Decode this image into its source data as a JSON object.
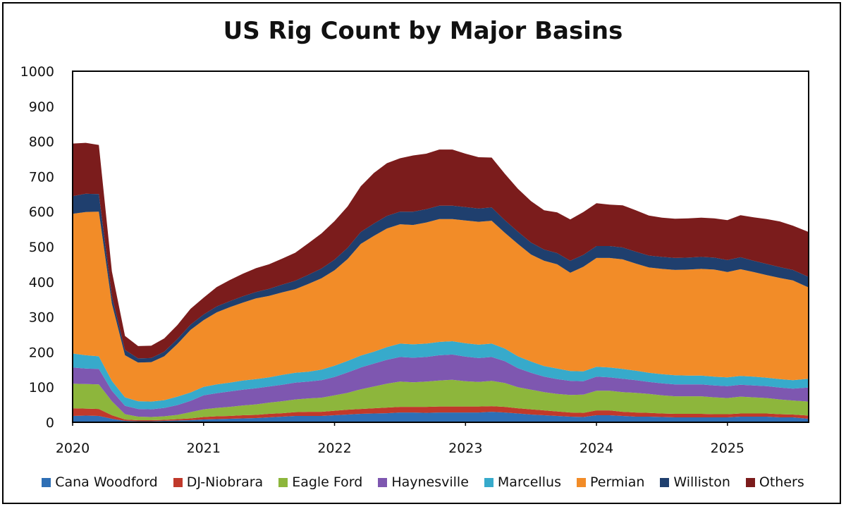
{
  "chart_data": {
    "type": "area",
    "stacked": true,
    "title": "US Rig Count by Major Basins",
    "xlabel": "",
    "ylabel": "",
    "ylim": [
      0,
      1000
    ],
    "yticks": [
      "0",
      "100",
      "200",
      "300",
      "400",
      "500",
      "600",
      "700",
      "800",
      "900",
      "1000"
    ],
    "xticks": [
      "2020",
      "2021",
      "2022",
      "2023",
      "2024",
      "2025"
    ],
    "xlim": [
      2020.0,
      2025.62
    ],
    "legend_position": "bottom",
    "grid": false,
    "x": [
      2020.0,
      2020.1,
      2020.2,
      2020.3,
      2020.4,
      2020.5,
      2020.6,
      2020.7,
      2020.8,
      2020.9,
      2021.0,
      2021.1,
      2021.2,
      2021.3,
      2021.4,
      2021.5,
      2021.6,
      2021.7,
      2021.8,
      2021.9,
      2022.0,
      2022.1,
      2022.2,
      2022.3,
      2022.4,
      2022.5,
      2022.6,
      2022.7,
      2022.8,
      2022.9,
      2023.0,
      2023.1,
      2023.2,
      2023.3,
      2023.4,
      2023.5,
      2023.6,
      2023.7,
      2023.8,
      2023.9,
      2024.0,
      2024.1,
      2024.2,
      2024.3,
      2024.4,
      2024.5,
      2024.6,
      2024.7,
      2024.8,
      2024.9,
      2025.0,
      2025.1,
      2025.2,
      2025.3,
      2025.4,
      2025.5,
      2025.62
    ],
    "series": [
      {
        "name": "Cana Woodford",
        "color": "#2e6fb5",
        "values": [
          18,
          19,
          18,
          10,
          4,
          3,
          3,
          4,
          5,
          6,
          8,
          9,
          10,
          11,
          12,
          14,
          16,
          18,
          18,
          18,
          20,
          22,
          24,
          25,
          26,
          28,
          28,
          27,
          28,
          28,
          28,
          28,
          30,
          28,
          25,
          22,
          20,
          18,
          16,
          15,
          20,
          20,
          18,
          16,
          16,
          15,
          14,
          14,
          14,
          14,
          14,
          16,
          16,
          16,
          14,
          14,
          10
        ]
      },
      {
        "name": "DJ-Niobrara",
        "color": "#c0392b",
        "values": [
          22,
          20,
          20,
          10,
          4,
          3,
          3,
          3,
          4,
          5,
          7,
          8,
          8,
          9,
          9,
          10,
          10,
          11,
          12,
          12,
          13,
          14,
          14,
          15,
          16,
          16,
          16,
          17,
          17,
          17,
          17,
          17,
          16,
          16,
          15,
          15,
          14,
          13,
          12,
          12,
          14,
          14,
          12,
          12,
          11,
          10,
          10,
          10,
          10,
          9,
          9,
          9,
          9,
          9,
          9,
          8,
          9
        ]
      },
      {
        "name": "Eagle Ford",
        "color": "#8db63c",
        "values": [
          70,
          70,
          70,
          40,
          15,
          10,
          9,
          10,
          12,
          18,
          22,
          24,
          26,
          28,
          30,
          32,
          34,
          36,
          38,
          40,
          44,
          48,
          56,
          62,
          68,
          72,
          70,
          72,
          74,
          76,
          72,
          70,
          72,
          68,
          60,
          56,
          52,
          50,
          50,
          52,
          56,
          56,
          56,
          56,
          54,
          52,
          50,
          50,
          50,
          48,
          46,
          48,
          46,
          44,
          42,
          40,
          40
        ]
      },
      {
        "name": "Haynesville",
        "color": "#7e57b0",
        "values": [
          46,
          44,
          44,
          30,
          24,
          22,
          22,
          24,
          28,
          32,
          40,
          42,
          44,
          45,
          46,
          46,
          47,
          48,
          48,
          50,
          52,
          58,
          62,
          65,
          68,
          70,
          70,
          70,
          72,
          72,
          70,
          68,
          68,
          62,
          54,
          48,
          44,
          42,
          40,
          38,
          40,
          38,
          38,
          36,
          34,
          34,
          34,
          34,
          34,
          34,
          34,
          34,
          34,
          34,
          34,
          34,
          40
        ]
      },
      {
        "name": "Marcellus",
        "color": "#37aacb",
        "values": [
          40,
          38,
          36,
          28,
          24,
          22,
          22,
          22,
          24,
          24,
          24,
          25,
          25,
          26,
          26,
          26,
          28,
          28,
          28,
          30,
          32,
          33,
          34,
          34,
          36,
          38,
          38,
          38,
          38,
          38,
          38,
          38,
          38,
          36,
          34,
          32,
          30,
          30,
          28,
          28,
          28,
          28,
          28,
          27,
          26,
          26,
          26,
          25,
          25,
          25,
          25,
          25,
          25,
          24,
          24,
          24,
          25
        ]
      },
      {
        "name": "Permian",
        "color": "#f28c28",
        "values": [
          398,
          408,
          412,
          220,
          120,
          110,
          112,
          125,
          150,
          178,
          190,
          205,
          215,
          222,
          230,
          232,
          235,
          238,
          250,
          260,
          272,
          290,
          318,
          330,
          338,
          340,
          340,
          345,
          350,
          348,
          350,
          350,
          350,
          330,
          320,
          305,
          300,
          297,
          280,
          298,
          310,
          312,
          312,
          305,
          300,
          300,
          300,
          302,
          304,
          305,
          300,
          304,
          298,
          292,
          288,
          284,
          260
        ]
      },
      {
        "name": "Williston",
        "color": "#1f3f6e",
        "values": [
          50,
          52,
          50,
          22,
          15,
          12,
          12,
          13,
          14,
          15,
          16,
          17,
          17,
          18,
          18,
          20,
          22,
          24,
          26,
          28,
          30,
          32,
          34,
          35,
          36,
          36,
          38,
          38,
          38,
          38,
          38,
          38,
          38,
          36,
          35,
          34,
          32,
          32,
          34,
          34,
          34,
          34,
          34,
          34,
          34,
          34,
          34,
          34,
          34,
          34,
          34,
          34,
          32,
          32,
          31,
          30,
          30
        ]
      },
      {
        "name": "Others",
        "color": "#7b1c1c",
        "values": [
          150,
          145,
          140,
          70,
          40,
          35,
          35,
          38,
          40,
          45,
          48,
          55,
          60,
          64,
          68,
          70,
          74,
          80,
          90,
          100,
          110,
          118,
          130,
          144,
          150,
          152,
          160,
          158,
          160,
          160,
          152,
          146,
          142,
          132,
          122,
          118,
          112,
          116,
          118,
          122,
          122,
          118,
          120,
          118,
          114,
          112,
          112,
          112,
          112,
          112,
          114,
          120,
          124,
          128,
          130,
          126,
          128
        ]
      }
    ]
  }
}
